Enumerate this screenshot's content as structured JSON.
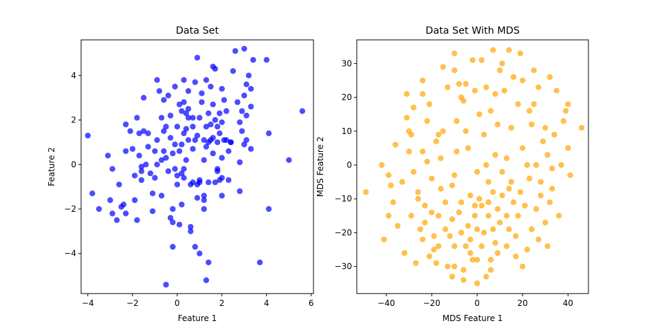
{
  "chart_data": [
    {
      "type": "scatter",
      "title": "Data Set",
      "xlabel": "Feature 1",
      "ylabel": "Feature 2",
      "xlim": [
        -4.3,
        6.1
      ],
      "ylim": [
        -5.8,
        5.6
      ],
      "xticks": [
        -4,
        -2,
        0,
        2,
        4,
        6
      ],
      "yticks": [
        -4,
        -2,
        0,
        2,
        4
      ],
      "grid": false,
      "color": "#0000ff",
      "points": [
        [
          -4.0,
          1.3
        ],
        [
          -3.8,
          -1.3
        ],
        [
          -3.5,
          -2.0
        ],
        [
          -3.1,
          0.4
        ],
        [
          -3.0,
          -1.6
        ],
        [
          -2.9,
          -0.2
        ],
        [
          -2.7,
          -2.5
        ],
        [
          -2.6,
          -0.9
        ],
        [
          -2.5,
          -1.9
        ],
        [
          -2.4,
          -1.8
        ],
        [
          -2.3,
          -2.2
        ],
        [
          -2.3,
          1.8
        ],
        [
          -2.3,
          0.6
        ],
        [
          -2.1,
          1.5
        ],
        [
          -2.0,
          0.7
        ],
        [
          -1.9,
          -0.5
        ],
        [
          -1.8,
          -2.5
        ],
        [
          -1.8,
          2.1
        ],
        [
          -1.7,
          1.4
        ],
        [
          -1.7,
          0.4
        ],
        [
          -1.6,
          -0.1
        ],
        [
          -1.6,
          -0.3
        ],
        [
          -1.6,
          -0.7
        ],
        [
          -1.5,
          1.5
        ],
        [
          -1.5,
          3.0
        ],
        [
          -1.4,
          0.0
        ],
        [
          -1.3,
          1.4
        ],
        [
          -1.2,
          -0.4
        ],
        [
          -1.1,
          -1.3
        ],
        [
          -1.1,
          -2.1
        ],
        [
          -1.0,
          0.6
        ],
        [
          -1.0,
          -0.6
        ],
        [
          -0.9,
          0.0
        ],
        [
          -0.9,
          3.8
        ],
        [
          -0.9,
          1.1
        ],
        [
          -0.8,
          3.3
        ],
        [
          -0.7,
          2.1
        ],
        [
          -0.7,
          0.2
        ],
        [
          -0.7,
          -1.4
        ],
        [
          -0.6,
          1.5
        ],
        [
          -0.6,
          0.6
        ],
        [
          -0.6,
          2.9
        ],
        [
          -0.5,
          1.7
        ],
        [
          -0.5,
          0.3
        ],
        [
          -0.4,
          -0.3
        ],
        [
          -0.4,
          3.1
        ],
        [
          -0.3,
          2.2
        ],
        [
          -0.3,
          1.2
        ],
        [
          -0.3,
          -2.4
        ],
        [
          -0.2,
          0.5
        ],
        [
          -0.2,
          -2.0
        ],
        [
          -0.2,
          -3.7
        ],
        [
          -0.1,
          0.9
        ],
        [
          -0.1,
          3.5
        ],
        [
          -0.1,
          -0.2
        ],
        [
          0.0,
          1.7
        ],
        [
          0.0,
          -0.5
        ],
        [
          0.0,
          -0.9
        ],
        [
          0.1,
          -2.7
        ],
        [
          0.1,
          2.7
        ],
        [
          0.1,
          0.6
        ],
        [
          0.2,
          -1.8
        ],
        [
          0.2,
          2.4
        ],
        [
          0.2,
          0.9
        ],
        [
          0.2,
          -0.4
        ],
        [
          0.3,
          2.8
        ],
        [
          0.3,
          1.4
        ],
        [
          0.3,
          -0.6
        ],
        [
          0.3,
          3.8
        ],
        [
          0.4,
          2.3
        ],
        [
          0.4,
          1.6
        ],
        [
          0.4,
          0.2
        ],
        [
          0.5,
          3.3
        ],
        [
          0.5,
          1.1
        ],
        [
          0.5,
          2.5
        ],
        [
          0.6,
          -0.9
        ],
        [
          0.6,
          -2.8
        ],
        [
          0.6,
          -3.0
        ],
        [
          0.7,
          2.1
        ],
        [
          0.7,
          1.7
        ],
        [
          0.7,
          0.7
        ],
        [
          0.7,
          -0.8
        ],
        [
          0.8,
          3.7
        ],
        [
          0.8,
          1.1
        ],
        [
          0.8,
          -3.7
        ],
        [
          0.9,
          4.8
        ],
        [
          0.9,
          1.3
        ],
        [
          0.9,
          -0.9
        ],
        [
          1.0,
          2.1
        ],
        [
          1.0,
          -0.7
        ],
        [
          1.0,
          -4.0
        ],
        [
          1.1,
          3.2
        ],
        [
          1.1,
          2.8
        ],
        [
          1.2,
          1.1
        ],
        [
          1.2,
          0.2
        ],
        [
          1.2,
          -1.6
        ],
        [
          1.2,
          -2.0
        ],
        [
          1.2,
          -1.4
        ],
        [
          1.3,
          3.8
        ],
        [
          1.3,
          1.7
        ],
        [
          1.3,
          0.8
        ],
        [
          1.3,
          -5.2
        ],
        [
          1.4,
          2.3
        ],
        [
          1.4,
          1.0
        ],
        [
          1.4,
          -0.8
        ],
        [
          1.4,
          -4.4
        ],
        [
          1.5,
          3.5
        ],
        [
          1.5,
          1.8
        ],
        [
          1.5,
          1.1
        ],
        [
          1.6,
          4.4
        ],
        [
          1.6,
          2.7
        ],
        [
          1.6,
          1.2
        ],
        [
          1.6,
          0.5
        ],
        [
          1.7,
          4.3
        ],
        [
          1.7,
          2.0
        ],
        [
          1.8,
          1.7
        ],
        [
          1.8,
          1.0
        ],
        [
          1.8,
          -0.2
        ],
        [
          1.8,
          -0.3
        ],
        [
          1.9,
          2.3
        ],
        [
          1.9,
          1.4
        ],
        [
          1.9,
          -0.7
        ],
        [
          2.0,
          3.4
        ],
        [
          2.0,
          1.9
        ],
        [
          2.0,
          0.3
        ],
        [
          2.0,
          -0.6
        ],
        [
          2.0,
          -1.4
        ],
        [
          2.1,
          1.1
        ],
        [
          2.1,
          2.9
        ],
        [
          2.2,
          2.4
        ],
        [
          2.2,
          1.1
        ],
        [
          2.3,
          -0.7
        ],
        [
          2.3,
          0.6
        ],
        [
          2.4,
          1.0
        ],
        [
          2.5,
          4.2
        ],
        [
          2.6,
          5.1
        ],
        [
          2.7,
          2.8
        ],
        [
          2.8,
          1.9
        ],
        [
          2.8,
          0.1
        ],
        [
          2.8,
          -1.2
        ],
        [
          2.9,
          2.4
        ],
        [
          2.9,
          1.5
        ],
        [
          3.0,
          5.2
        ],
        [
          3.0,
          3.1
        ],
        [
          3.0,
          0.9
        ],
        [
          3.1,
          1.1
        ],
        [
          3.1,
          2.2
        ],
        [
          3.1,
          3.6
        ],
        [
          3.2,
          4.0
        ],
        [
          3.3,
          2.6
        ],
        [
          3.3,
          3.4
        ],
        [
          3.3,
          0.7
        ],
        [
          3.4,
          4.7
        ],
        [
          3.7,
          -4.4
        ],
        [
          4.0,
          4.7
        ],
        [
          4.1,
          1.4
        ],
        [
          4.1,
          -2.0
        ],
        [
          5.0,
          0.2
        ],
        [
          5.6,
          2.4
        ],
        [
          -0.5,
          -5.4
        ],
        [
          -0.2,
          -2.6
        ],
        [
          0.3,
          -0.2
        ],
        [
          1.0,
          -0.8
        ],
        [
          -1.9,
          -1.6
        ],
        [
          -2.9,
          -2.2
        ],
        [
          2.4,
          1.0
        ],
        [
          1.7,
          -0.8
        ],
        [
          0.9,
          -1.5
        ],
        [
          -1.3,
          0.8
        ],
        [
          0.5,
          2.1
        ]
      ]
    },
    {
      "type": "scatter",
      "title": "Data Set With MDS",
      "xlabel": "MDS Feature 1",
      "ylabel": "MDS Feature 2",
      "xlim": [
        -53,
        49
      ],
      "ylim": [
        -38,
        37
      ],
      "xticks": [
        -40,
        -20,
        0,
        20,
        40
      ],
      "yticks": [
        -30,
        -20,
        -10,
        0,
        10,
        20,
        30
      ],
      "grid": false,
      "color": "#ffa500",
      "points": [
        [
          -49,
          -8
        ],
        [
          -42,
          0
        ],
        [
          -41,
          -22
        ],
        [
          -39,
          -15
        ],
        [
          -39,
          -3
        ],
        [
          -38,
          -6
        ],
        [
          -37,
          -11
        ],
        [
          -36,
          6
        ],
        [
          -35,
          -18
        ],
        [
          -33,
          -5
        ],
        [
          -32,
          -26
        ],
        [
          -31,
          14
        ],
        [
          -31,
          21
        ],
        [
          -30,
          4
        ],
        [
          -30,
          10
        ],
        [
          -29,
          9
        ],
        [
          -29,
          -15
        ],
        [
          -28,
          17
        ],
        [
          -28,
          -2
        ],
        [
          -27,
          -29
        ],
        [
          -26,
          -8
        ],
        [
          -26,
          -10
        ],
        [
          -25,
          -19
        ],
        [
          -24,
          25
        ],
        [
          -24,
          21
        ],
        [
          -24,
          -22
        ],
        [
          -24,
          4
        ],
        [
          -23,
          -17
        ],
        [
          -23,
          -12
        ],
        [
          -22,
          1
        ],
        [
          -22,
          13
        ],
        [
          -21,
          -27
        ],
        [
          -21,
          18
        ],
        [
          -20,
          -14
        ],
        [
          -20,
          -4
        ],
        [
          -19,
          -21
        ],
        [
          -19,
          -25
        ],
        [
          -18,
          7
        ],
        [
          -18,
          -29
        ],
        [
          -17,
          -15
        ],
        [
          -17,
          -24
        ],
        [
          -16,
          2
        ],
        [
          -16,
          -7
        ],
        [
          -15,
          29
        ],
        [
          -15,
          10
        ],
        [
          -14,
          -19
        ],
        [
          -14,
          -11
        ],
        [
          -13,
          -30
        ],
        [
          -13,
          23
        ],
        [
          -12,
          -21
        ],
        [
          -11,
          -16
        ],
        [
          -11,
          -33
        ],
        [
          -11,
          -6
        ],
        [
          -10,
          33
        ],
        [
          -10,
          28
        ],
        [
          -10,
          -24
        ],
        [
          -10,
          -30
        ],
        [
          -10,
          -3
        ],
        [
          -9,
          13
        ],
        [
          -9,
          4
        ],
        [
          -8,
          24
        ],
        [
          -8,
          -14
        ],
        [
          -7,
          -20
        ],
        [
          -7,
          -11
        ],
        [
          -6,
          -31
        ],
        [
          -6,
          -34
        ],
        [
          -6,
          19
        ],
        [
          -5,
          24
        ],
        [
          -5,
          10
        ],
        [
          -5,
          -24
        ],
        [
          -4,
          5
        ],
        [
          -4,
          -18
        ],
        [
          -3,
          -22
        ],
        [
          -3,
          -9
        ],
        [
          -3,
          -26
        ],
        [
          -2,
          31
        ],
        [
          -2,
          -28
        ],
        [
          -1,
          22
        ],
        [
          -1,
          -12
        ],
        [
          -1,
          -15
        ],
        [
          0,
          -2
        ],
        [
          0,
          -35
        ],
        [
          0,
          -28
        ],
        [
          0,
          -19
        ],
        [
          1,
          15
        ],
        [
          1,
          -10
        ],
        [
          2,
          31
        ],
        [
          2,
          -12
        ],
        [
          2,
          -24
        ],
        [
          3,
          -20
        ],
        [
          4,
          -33
        ],
        [
          4,
          23
        ],
        [
          4,
          0
        ],
        [
          5,
          -5
        ],
        [
          5,
          -15
        ],
        [
          5,
          -11
        ],
        [
          6,
          -28
        ],
        [
          6,
          -31
        ],
        [
          6,
          16
        ],
        [
          7,
          34
        ],
        [
          7,
          -8
        ],
        [
          7,
          -19
        ],
        [
          8,
          21
        ],
        [
          8,
          -23
        ],
        [
          8,
          3
        ],
        [
          9,
          12
        ],
        [
          9,
          -13
        ],
        [
          9,
          -26
        ],
        [
          10,
          28
        ],
        [
          10,
          -17
        ],
        [
          11,
          30
        ],
        [
          11,
          -2
        ],
        [
          11,
          -9
        ],
        [
          12,
          22
        ],
        [
          13,
          -24
        ],
        [
          13,
          2
        ],
        [
          13,
          -15
        ],
        [
          14,
          34
        ],
        [
          14,
          -19
        ],
        [
          15,
          11
        ],
        [
          15,
          -5
        ],
        [
          16,
          -11
        ],
        [
          16,
          26
        ],
        [
          17,
          -27
        ],
        [
          17,
          -21
        ],
        [
          18,
          18
        ],
        [
          18,
          -15
        ],
        [
          19,
          -8
        ],
        [
          19,
          33
        ],
        [
          20,
          25
        ],
        [
          20,
          5
        ],
        [
          20,
          -30
        ],
        [
          21,
          -12
        ],
        [
          22,
          -25
        ],
        [
          23,
          -4
        ],
        [
          23,
          16
        ],
        [
          24,
          12
        ],
        [
          24,
          -19
        ],
        [
          25,
          18
        ],
        [
          25,
          28
        ],
        [
          26,
          0
        ],
        [
          26,
          -13
        ],
        [
          27,
          -22
        ],
        [
          27,
          23
        ],
        [
          28,
          -5
        ],
        [
          28,
          -9
        ],
        [
          29,
          7
        ],
        [
          30,
          -17
        ],
        [
          30,
          11
        ],
        [
          31,
          -24
        ],
        [
          31,
          3
        ],
        [
          32,
          -11
        ],
        [
          32,
          26
        ],
        [
          33,
          -1
        ],
        [
          33,
          -7
        ],
        [
          34,
          9
        ],
        [
          35,
          22
        ],
        [
          36,
          -15
        ],
        [
          37,
          0
        ],
        [
          38,
          13
        ],
        [
          39,
          16
        ],
        [
          40,
          5
        ],
        [
          40,
          18
        ],
        [
          41,
          -3
        ],
        [
          46,
          11
        ],
        [
          3,
          9
        ],
        [
          -7,
          20
        ],
        [
          14,
          -7
        ],
        [
          -17,
          9
        ],
        [
          22,
          0
        ]
      ]
    }
  ]
}
